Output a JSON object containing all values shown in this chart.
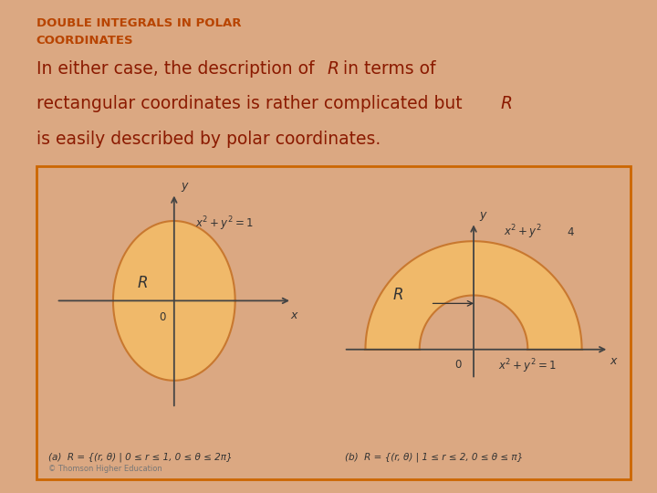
{
  "bg_color": "#dba882",
  "slide_bg": "#dba882",
  "title_text": "DOUBLE INTEGRALS IN POLAR\nCOORDINATES",
  "title_color": "#b84400",
  "body_color": "#8b1a00",
  "box_bg": "#ffffff",
  "box_border": "#cc6600",
  "fill_color": "#f0b96a",
  "fill_edge": "#c87830",
  "axis_color": "#444444",
  "label_color": "#333333",
  "caption_a": "(a)  R = {(r, θ) | 0 ≤ r ≤ 1, 0 ≤ θ ≤ 2π}",
  "caption_b": "(b)  R = {(r, θ) | 1 ≤ r ≤ 2, 0 ≤ θ ≤ π}",
  "copyright": "© Thomson Higher Education"
}
